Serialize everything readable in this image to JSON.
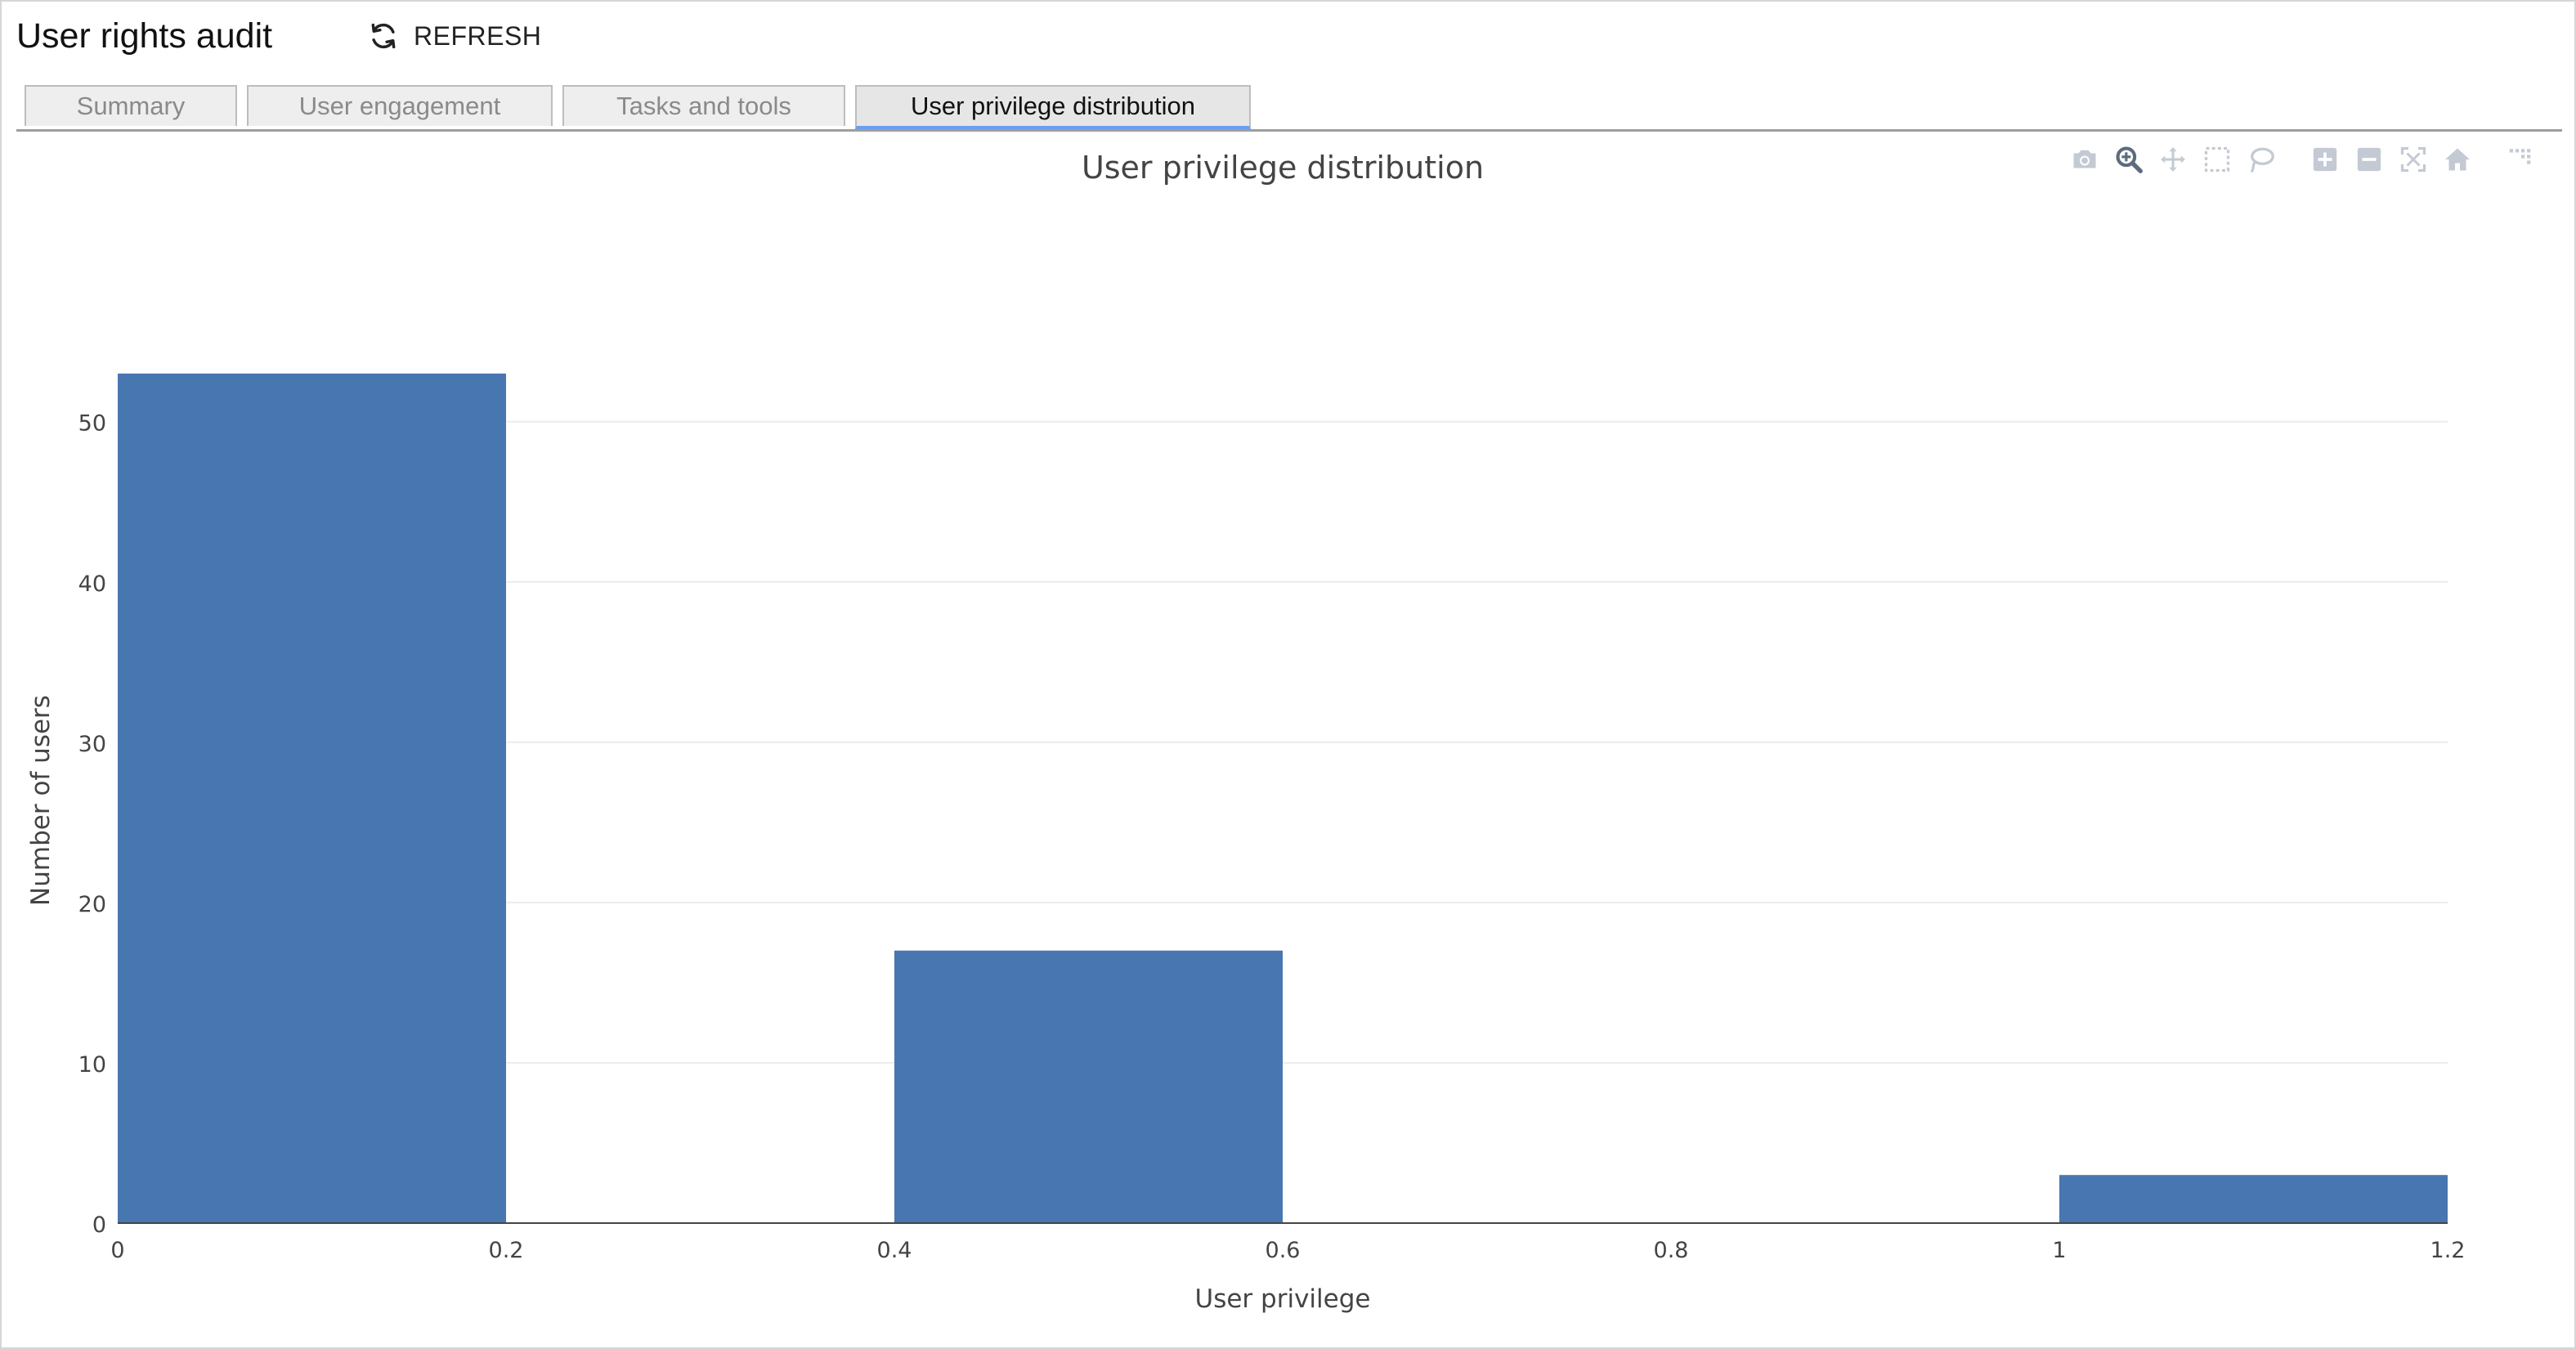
{
  "app": {
    "title": "User rights audit",
    "refresh_label": "REFRESH"
  },
  "tabs": [
    {
      "label": "Summary",
      "active": false
    },
    {
      "label": "User engagement",
      "active": false
    },
    {
      "label": "Tasks and tools",
      "active": false
    },
    {
      "label": "User privilege distribution",
      "active": true
    }
  ],
  "modebar": {
    "icons": [
      "camera-icon",
      "zoom-icon",
      "pan-icon",
      "box-select-icon",
      "lasso-select-icon",
      "zoom-in-icon",
      "zoom-out-icon",
      "autoscale-icon",
      "reset-axes-icon",
      "plotly-logo-icon"
    ]
  },
  "chart_data": {
    "type": "bar",
    "title": "User privilege distribution",
    "xlabel": "User privilege",
    "ylabel": "Number of users",
    "xlim": [
      0,
      1.2
    ],
    "ylim": [
      0,
      55.8
    ],
    "xticks": [
      0,
      0.2,
      0.4,
      0.6,
      0.8,
      1,
      1.2
    ],
    "xtick_labels": [
      "0",
      "0.2",
      "0.4",
      "0.6",
      "0.8",
      "1",
      "1.2"
    ],
    "yticks": [
      0,
      10,
      20,
      30,
      40,
      50
    ],
    "ytick_labels": [
      "0",
      "10",
      "20",
      "30",
      "40",
      "50"
    ],
    "bins": [
      {
        "x0": 0,
        "x1": 0.2,
        "count": 53
      },
      {
        "x0": 0.4,
        "x1": 0.6,
        "count": 17
      },
      {
        "x0": 1.0,
        "x1": 1.2,
        "count": 3
      }
    ],
    "bar_color": "#4876b0",
    "grid": true,
    "legend": "none"
  }
}
